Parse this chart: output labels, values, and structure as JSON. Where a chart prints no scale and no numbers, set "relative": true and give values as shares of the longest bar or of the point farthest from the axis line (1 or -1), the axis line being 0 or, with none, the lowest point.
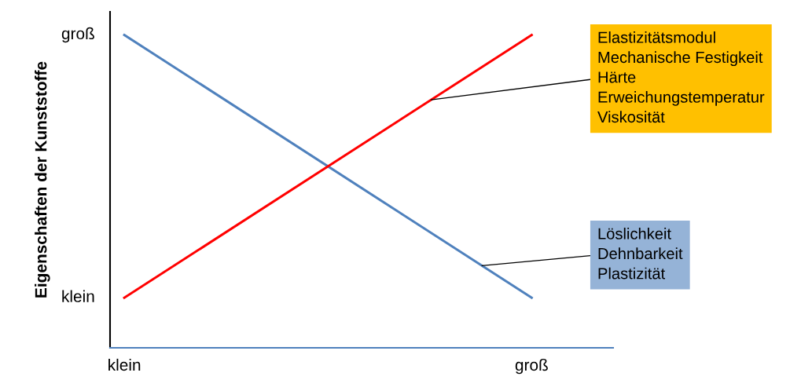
{
  "chart_data": {
    "type": "line",
    "ylabel": "Eigenschaften der Kunststoffe",
    "categories": [
      "klein",
      "groß"
    ],
    "relative": true,
    "series": [
      {
        "color": "#4f81bd",
        "values": [
          1,
          0.16
        ]
      },
      {
        "color": "#ff0000",
        "values": [
          0.16,
          1
        ]
      }
    ],
    "annotations": [
      "klein",
      "groß",
      "Elastizitätsmodul\nMechanische Festigkeit\nHärte\nErweichungstemperatur\nViskosität",
      "Löslichkeit\nDehnbarkeit\nPlastizität"
    ],
    "grid": false,
    "legend": false,
    "marker": "none",
    "line_style": "solid"
  }
}
